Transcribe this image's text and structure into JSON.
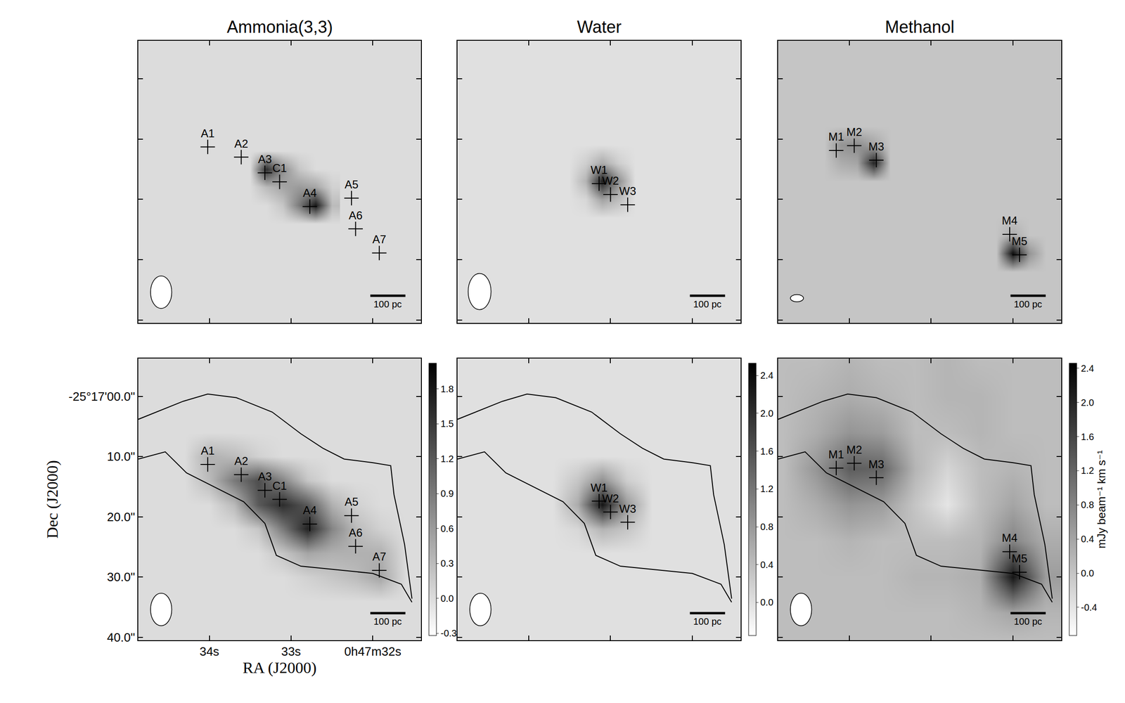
{
  "chart_data": [
    {
      "type": "heatmap",
      "title": "Ammonia(3,3)",
      "tick_labels": false,
      "xlim": [
        34.87,
        31.41
      ],
      "ylim": [
        40.5,
        -6.3
      ],
      "xticks": [
        {
          "value": 34,
          "label": "34s"
        },
        {
          "value": 33,
          "label": "33s"
        },
        {
          "value": 32,
          "label": "0h47m32s"
        }
      ],
      "yticks": [
        {
          "value": 0,
          "label": "-25°17'00.0\""
        },
        {
          "value": 10,
          "label": "10.0\""
        },
        {
          "value": 20,
          "label": "20.0\""
        },
        {
          "value": 30,
          "label": "30.0\""
        },
        {
          "value": 40,
          "label": "40.0\""
        }
      ],
      "zlim": [
        -0.32,
        2.02
      ],
      "maps": [
        {
          "ra": [
            33.5,
            33.3,
            33.1,
            32.9,
            32.7,
            32.5
          ],
          "dec": [
            12,
            15,
            18,
            21,
            24
          ],
          "z": [
            [
              0,
              0,
              0,
              0,
              0,
              0
            ],
            [
              0,
              1.6,
              0.7,
              0.2,
              0,
              0
            ],
            [
              0,
              0.3,
              0.5,
              0.6,
              0.5,
              0.1
            ],
            [
              0,
              0,
              0.2,
              0.9,
              1.8,
              0.3
            ],
            [
              0,
              0,
              0,
              0,
              0,
              0
            ]
          ]
        }
      ],
      "sources": {
        "labels": [
          "A1",
          "A2",
          "A3",
          "C1",
          "A4",
          "A5",
          "A6",
          "A7"
        ],
        "ra": [
          34.02,
          33.61,
          33.32,
          33.14,
          32.77,
          32.26,
          32.21,
          31.92
        ],
        "dec": [
          11.3,
          13.0,
          15.6,
          17.1,
          21.2,
          19.8,
          24.9,
          28.9
        ]
      },
      "beam": {
        "ra": 34.59,
        "dec": 35.4,
        "width_s": 0.26,
        "height_arcsec": 5.4
      },
      "scale_bar": {
        "label": "100 pc",
        "ra": [
          32.03,
          31.6
        ],
        "dec": 36.0
      }
    },
    {
      "type": "heatmap",
      "title": "Water",
      "tick_labels": false,
      "xlim": [
        34.87,
        31.41
      ],
      "ylim": [
        40.5,
        -6.3
      ],
      "xticks": [
        34,
        33,
        32
      ],
      "yticks": [
        0,
        10,
        20,
        30,
        40
      ],
      "zlim": [
        -0.35,
        2.53
      ],
      "maps": [
        {
          "ra": [
            33.5,
            33.3,
            33.1,
            32.9,
            32.7
          ],
          "dec": [
            11,
            14,
            17,
            20,
            23
          ],
          "z": [
            [
              0,
              0,
              0,
              0,
              0
            ],
            [
              0,
              0.2,
              0.6,
              0.2,
              0
            ],
            [
              0,
              0.5,
              2.2,
              0.9,
              0
            ],
            [
              0,
              0.1,
              0.7,
              0.4,
              0
            ],
            [
              0,
              0,
              0,
              0,
              0
            ]
          ]
        }
      ],
      "sources": {
        "labels": [
          "W1",
          "W2",
          "W3"
        ],
        "ra": [
          33.14,
          33.0,
          32.79
        ],
        "dec": [
          17.4,
          19.2,
          20.9
        ]
      },
      "beam": {
        "ra": 34.6,
        "dec": 35.3,
        "width_s": 0.28,
        "height_arcsec": 6.0
      },
      "scale_bar": {
        "label": "100 pc",
        "ra": [
          32.03,
          31.6
        ],
        "dec": 36.0
      }
    },
    {
      "type": "heatmap",
      "title": "Methanol",
      "tick_labels": false,
      "xlim": [
        34.87,
        31.41
      ],
      "ylim": [
        40.5,
        -6.3
      ],
      "xticks": [
        34,
        33,
        32
      ],
      "yticks": [
        0,
        10,
        20,
        30,
        40
      ],
      "zlim": [
        -0.73,
        2.46
      ],
      "maps": [
        {
          "ra": [
            34.3,
            34.1,
            33.9,
            33.7,
            33.5
          ],
          "dec": [
            8,
            11,
            14,
            17
          ],
          "z": [
            [
              0,
              0,
              0,
              0,
              0
            ],
            [
              0,
              0.6,
              0.7,
              0.4,
              0
            ],
            [
              0,
              0.3,
              0.4,
              2.0,
              0
            ],
            [
              0,
              0,
              0,
              0,
              0
            ]
          ]
        },
        {
          "ra": [
            32.2,
            32.0,
            31.8,
            31.6
          ],
          "dec": [
            23,
            26,
            29,
            32
          ],
          "z": [
            [
              0,
              0,
              0,
              0
            ],
            [
              0,
              0.3,
              0,
              0
            ],
            [
              0,
              2.3,
              0.6,
              0
            ],
            [
              0,
              0,
              0,
              0
            ]
          ]
        }
      ],
      "sources": {
        "labels": [
          "M1",
          "M2",
          "M3",
          "M4",
          "M5"
        ],
        "ra": [
          34.16,
          33.94,
          33.67,
          32.04,
          31.92
        ],
        "dec": [
          11.9,
          11.1,
          13.5,
          25.8,
          29.2
        ]
      },
      "beam": {
        "ra": 34.64,
        "dec": 36.4,
        "width_s": 0.16,
        "height_arcsec": 1.2
      },
      "scale_bar": {
        "label": "100 pc",
        "ra": [
          32.03,
          31.6
        ],
        "dec": 36.0
      }
    },
    {
      "type": "heatmap",
      "tick_labels": true,
      "x_label": "RA (J2000)",
      "y_label": "Dec (J2000)",
      "xlim": [
        34.87,
        31.41
      ],
      "ylim": [
        40.5,
        -6.3
      ],
      "xticks": [
        {
          "value": 34,
          "label": "34s"
        },
        {
          "value": 33,
          "label": "33s"
        },
        {
          "value": 32,
          "label": "0h47m32s"
        }
      ],
      "yticks": [
        {
          "value": 0,
          "label": "-25°17'00.0\""
        },
        {
          "value": 10,
          "label": "10.0\""
        },
        {
          "value": 20,
          "label": "20.0\""
        },
        {
          "value": 30,
          "label": "30.0\""
        },
        {
          "value": 40,
          "label": "40.0\""
        }
      ],
      "zlim": [
        -0.32,
        2.02
      ],
      "zticks": [
        {
          "value": -0.3,
          "label": "-0.3"
        },
        {
          "value": 0,
          "label": "0.0"
        },
        0.3,
        0.6,
        0.9,
        1.2,
        1.5,
        1.8
      ],
      "maps": [
        {
          "ra": [
            34.3,
            34.0,
            33.7,
            33.4,
            33.1,
            32.8,
            32.5,
            32.2,
            31.9,
            31.6
          ],
          "dec": [
            6,
            10,
            14,
            18,
            22,
            26,
            30,
            34
          ],
          "z": [
            [
              0,
              0,
              0,
              0,
              0,
              0,
              0,
              0,
              0,
              0
            ],
            [
              0,
              0.4,
              0.3,
              0.1,
              0,
              0,
              0,
              0,
              0,
              0
            ],
            [
              0,
              0.3,
              0.9,
              1.3,
              0.8,
              0.2,
              0,
              0,
              0,
              0
            ],
            [
              0,
              0,
              0.3,
              1.2,
              1.6,
              1.2,
              0.4,
              0.1,
              0,
              0
            ],
            [
              0,
              0,
              0,
              0.2,
              0.9,
              1.7,
              0.8,
              0.3,
              0.1,
              0
            ],
            [
              0,
              0,
              0,
              0,
              0.2,
              0.5,
              0.4,
              0.4,
              0.4,
              0
            ],
            [
              0,
              0,
              0,
              0,
              0,
              0.1,
              0.2,
              0.3,
              0.5,
              0
            ],
            [
              0,
              0,
              0,
              0,
              0,
              0,
              0,
              0,
              0,
              0
            ]
          ]
        }
      ],
      "sources": {
        "labels": [
          "A1",
          "A2",
          "A3",
          "C1",
          "A4",
          "A5",
          "A6",
          "A7"
        ],
        "ra": [
          34.02,
          33.61,
          33.32,
          33.14,
          32.77,
          32.26,
          32.21,
          31.92
        ],
        "dec": [
          11.3,
          13.0,
          15.6,
          17.1,
          21.2,
          19.8,
          24.9,
          28.9
        ]
      },
      "contour": [
        {
          "ra": [
            34.87,
            34.32,
            34.02,
            33.67,
            33.23,
            32.88,
            32.61,
            32.35,
            32.0,
            31.78,
            31.74,
            31.61,
            31.52
          ],
          "dec": [
            3.8,
            0.8,
            -0.4,
            0.2,
            2.6,
            6.2,
            8.6,
            10.4,
            11.0,
            11.5,
            16.3,
            24.6,
            33.6
          ]
        },
        {
          "ra": [
            34.87,
            34.54,
            34.28,
            33.93,
            33.58,
            33.32,
            33.18,
            32.88,
            32.44,
            32.0,
            31.65,
            31.52
          ],
          "dec": [
            10.4,
            9.2,
            12.7,
            15.1,
            17.5,
            21.1,
            26.4,
            28.2,
            28.8,
            29.4,
            31.2,
            34.2
          ]
        }
      ],
      "beam": {
        "ra": 34.59,
        "dec": 35.4,
        "width_s": 0.26,
        "height_arcsec": 5.4
      },
      "scale_bar": {
        "label": "100 pc",
        "ra": [
          32.03,
          31.6
        ],
        "dec": 36.0
      }
    },
    {
      "type": "heatmap",
      "tick_labels": false,
      "xlim": [
        34.87,
        31.41
      ],
      "ylim": [
        40.5,
        -6.3
      ],
      "xticks": [
        34,
        33,
        32
      ],
      "yticks": [
        0,
        10,
        20,
        30,
        40
      ],
      "zlim": [
        -0.35,
        2.53
      ],
      "zticks": [
        {
          "value": 0,
          "label": "0.0"
        },
        0.4,
        0.8,
        1.2,
        1.6,
        {
          "value": 2,
          "label": "2.0"
        },
        2.4
      ],
      "maps": [
        {
          "ra": [
            33.7,
            33.4,
            33.1,
            32.8,
            32.5
          ],
          "dec": [
            10,
            14,
            18,
            22,
            26
          ],
          "z": [
            [
              0,
              0,
              0,
              0,
              0
            ],
            [
              0,
              0.3,
              0.9,
              0.2,
              0
            ],
            [
              0,
              0.6,
              2.3,
              0.8,
              0
            ],
            [
              0,
              0.1,
              0.5,
              0.3,
              0
            ],
            [
              0,
              0,
              0,
              0,
              0
            ]
          ]
        }
      ],
      "sources": {
        "labels": [
          "W1",
          "W2",
          "W3"
        ],
        "ra": [
          33.14,
          33.0,
          32.79
        ],
        "dec": [
          17.4,
          19.2,
          20.9
        ]
      },
      "contour": [
        {
          "ra": [
            34.87,
            34.32,
            34.02,
            33.67,
            33.23,
            32.88,
            32.61,
            32.35,
            32.0,
            31.78,
            31.74,
            31.61,
            31.52
          ],
          "dec": [
            3.8,
            0.8,
            -0.4,
            0.2,
            2.6,
            6.2,
            8.6,
            10.4,
            11.0,
            11.5,
            16.3,
            24.6,
            33.6
          ]
        },
        {
          "ra": [
            34.87,
            34.54,
            34.28,
            33.93,
            33.58,
            33.32,
            33.18,
            32.88,
            32.44,
            32.0,
            31.65,
            31.52
          ],
          "dec": [
            10.4,
            9.2,
            12.7,
            15.1,
            17.5,
            21.1,
            26.4,
            28.2,
            28.8,
            29.4,
            31.2,
            34.2
          ]
        }
      ],
      "beam": {
        "ra": 34.59,
        "dec": 35.4,
        "width_s": 0.26,
        "height_arcsec": 5.4
      },
      "scale_bar": {
        "label": "100 pc",
        "ra": [
          32.03,
          31.6
        ],
        "dec": 36.0
      }
    },
    {
      "type": "heatmap",
      "tick_labels": false,
      "xlim": [
        34.87,
        31.41
      ],
      "ylim": [
        40.5,
        -6.3
      ],
      "xticks": [
        34,
        33,
        32
      ],
      "yticks": [
        0,
        10,
        20,
        30,
        40
      ],
      "zlim": [
        -0.73,
        2.46
      ],
      "zticks": [
        -0.4,
        {
          "value": 0,
          "label": "0.0"
        },
        0.4,
        0.8,
        1.2,
        1.6,
        {
          "value": 2,
          "label": "2.0"
        },
        2.4
      ],
      "colorbar_title": "mJy beam⁻¹ km s⁻¹",
      "maps": [
        {
          "ra": [
            34.8,
            34.4,
            34.0,
            33.6,
            33.2,
            32.8,
            32.4,
            32.0,
            31.6
          ],
          "dec": [
            -6,
            0,
            6,
            12,
            18,
            24,
            30,
            36,
            40.5
          ],
          "z": [
            [
              0.1,
              0.1,
              0.2,
              0.1,
              0.1,
              0.2,
              0.1,
              0.1,
              0.1
            ],
            [
              0.1,
              0.2,
              0.3,
              0.2,
              0.1,
              0.2,
              0.2,
              0.1,
              0.1
            ],
            [
              0.1,
              0.3,
              0.6,
              0.5,
              0.1,
              0.1,
              0.2,
              0.1,
              0.1
            ],
            [
              0.1,
              0.6,
              1.3,
              1.2,
              0.2,
              -0.2,
              0.1,
              0.2,
              0.1
            ],
            [
              0.1,
              0.3,
              0.6,
              0.5,
              0,
              -0.4,
              0.1,
              0.4,
              0.1
            ],
            [
              0.1,
              0.1,
              0.2,
              0.1,
              0.1,
              0.1,
              0.2,
              0.8,
              0.3
            ],
            [
              0.1,
              0.1,
              0.1,
              0.1,
              0.2,
              0.2,
              0.3,
              2.2,
              0.5
            ],
            [
              0.1,
              0.1,
              0.1,
              0.1,
              0.1,
              0.1,
              0.2,
              0.4,
              0.2
            ],
            [
              0.1,
              0.1,
              0.1,
              0.1,
              0.1,
              0.1,
              0.1,
              0.1,
              0.1
            ]
          ]
        }
      ],
      "sources": {
        "labels": [
          "M1",
          "M2",
          "M3",
          "M4",
          "M5"
        ],
        "ra": [
          34.16,
          33.94,
          33.67,
          32.04,
          31.92
        ],
        "dec": [
          11.9,
          11.1,
          13.5,
          25.8,
          29.2
        ]
      },
      "contour": [
        {
          "ra": [
            34.87,
            34.32,
            34.02,
            33.67,
            33.23,
            32.88,
            32.61,
            32.35,
            32.0,
            31.78,
            31.74,
            31.61,
            31.52
          ],
          "dec": [
            3.8,
            0.8,
            -0.4,
            0.2,
            2.6,
            6.2,
            8.6,
            10.4,
            11.0,
            11.5,
            16.3,
            24.6,
            33.6
          ]
        },
        {
          "ra": [
            34.87,
            34.54,
            34.28,
            33.93,
            33.58,
            33.32,
            33.18,
            32.88,
            32.44,
            32.0,
            31.65,
            31.52
          ],
          "dec": [
            10.4,
            9.2,
            12.7,
            15.1,
            17.5,
            21.1,
            26.4,
            28.2,
            28.8,
            29.4,
            31.2,
            34.2
          ]
        }
      ],
      "beam": {
        "ra": 34.59,
        "dec": 35.4,
        "width_s": 0.26,
        "height_arcsec": 5.4
      },
      "scale_bar": {
        "label": "100 pc",
        "ra": [
          32.03,
          31.6
        ],
        "dec": 36.0
      }
    }
  ]
}
